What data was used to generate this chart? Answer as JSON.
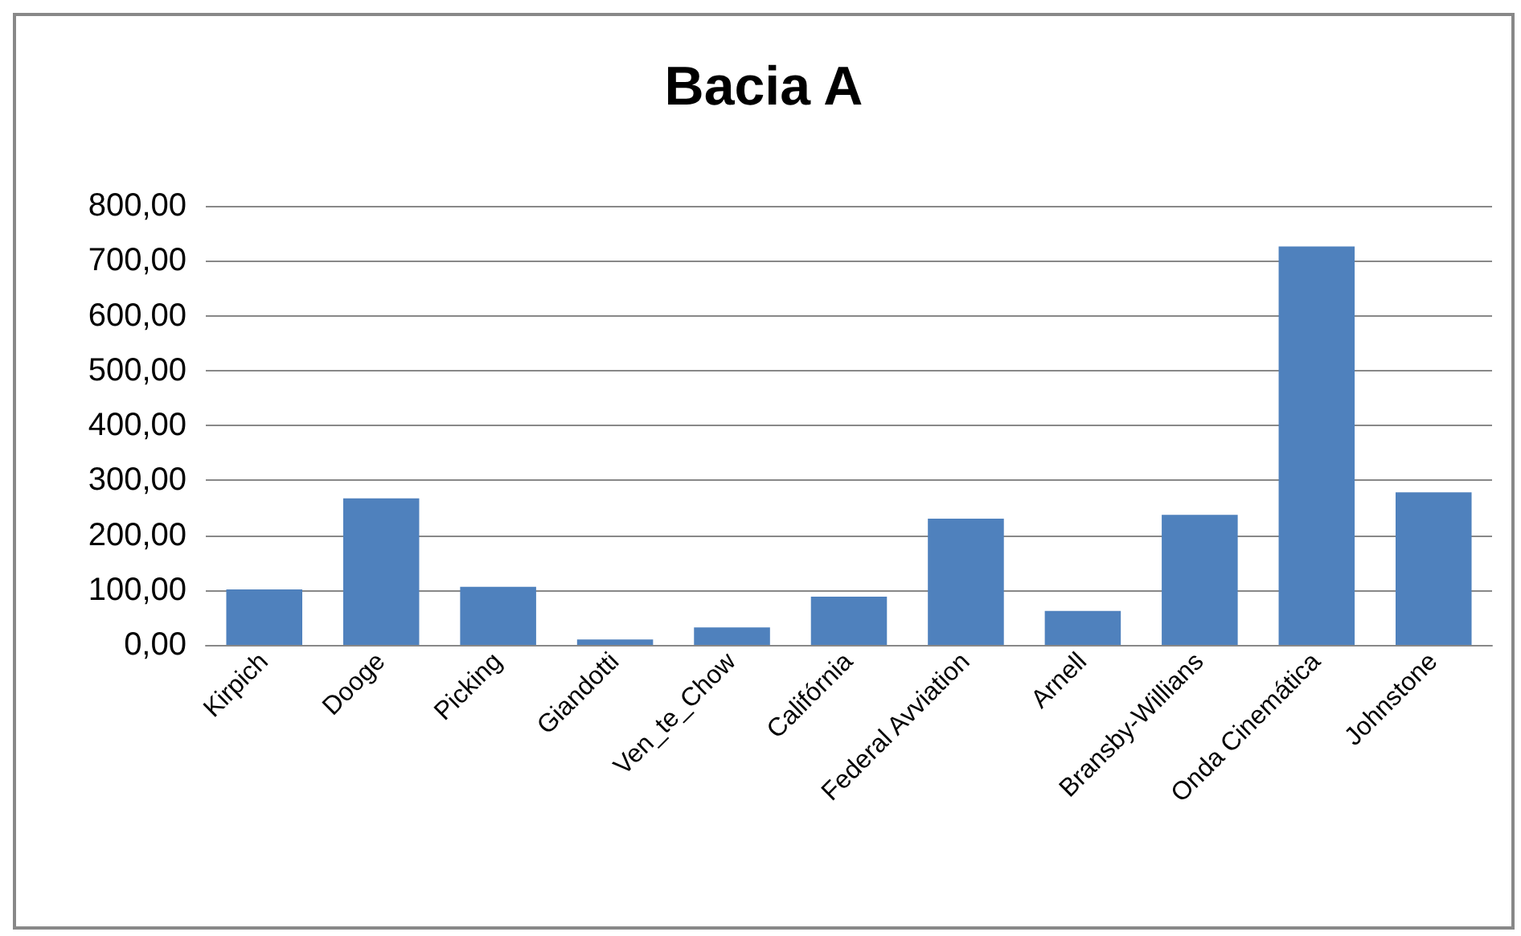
{
  "chart_data": {
    "type": "bar",
    "title": "Bacia A",
    "categories": [
      "Kirpich",
      "Dooge",
      "Picking",
      "Giandotti",
      "Ven_te_Chow",
      "Califórnia",
      "Federal Avviation",
      "Arnell",
      "Bransby-Willians",
      "Onda Cinemática",
      "Johnstone"
    ],
    "values": [
      101,
      267,
      106,
      10,
      32,
      88,
      230,
      62,
      237,
      726,
      278
    ],
    "color": "#4f81bd",
    "ylim": [
      0,
      800
    ],
    "yticks": [
      {
        "value": 0,
        "label": "0,00"
      },
      {
        "value": 100,
        "label": "100,00"
      },
      {
        "value": 200,
        "label": "200,00"
      },
      {
        "value": 300,
        "label": "300,00"
      },
      {
        "value": 400,
        "label": "400,00"
      },
      {
        "value": 500,
        "label": "500,00"
      },
      {
        "value": 600,
        "label": "600,00"
      },
      {
        "value": 700,
        "label": "700,00"
      },
      {
        "value": 800,
        "label": "800,00"
      }
    ],
    "grid": "y"
  }
}
